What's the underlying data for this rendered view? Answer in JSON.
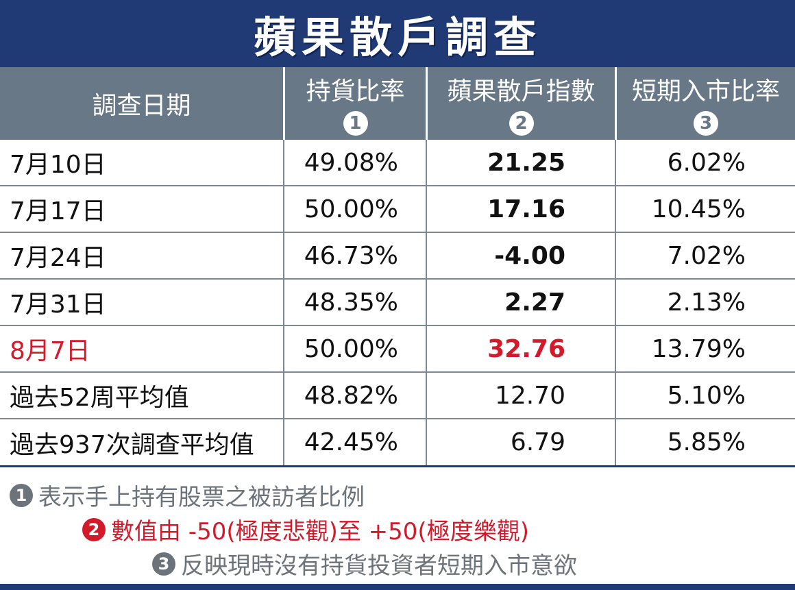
{
  "title": "蘋果散戶調查",
  "headers": [
    {
      "label": "調查日期",
      "badge": ""
    },
    {
      "label": "持貨比率",
      "badge": "1"
    },
    {
      "label": "蘋果散戶指數",
      "badge": "2"
    },
    {
      "label": "短期入市比率",
      "badge": "3"
    }
  ],
  "rows": [
    {
      "date": "7月10日",
      "holding": "49.08%",
      "index": "21.25",
      "short": "6.02%"
    },
    {
      "date": "7月17日",
      "holding": "50.00%",
      "index": "17.16",
      "short": "10.45%"
    },
    {
      "date": "7月24日",
      "holding": "46.73%",
      "index": "-4.00",
      "short": "7.02%"
    },
    {
      "date": "7月31日",
      "holding": "48.35%",
      "index": "2.27",
      "short": "2.13%"
    },
    {
      "date": "8月7日",
      "holding": "50.00%",
      "index": "32.76",
      "short": "13.79%"
    },
    {
      "date": "過去52周平均值",
      "holding": "48.82%",
      "index": "12.70",
      "short": "5.10%"
    },
    {
      "date": "過去937次調查平均值",
      "holding": "42.45%",
      "index": "6.79",
      "short": "5.85%"
    }
  ],
  "notes": [
    {
      "badge": "1",
      "text": "表示手上持有股票之被訪者比例"
    },
    {
      "badge": "2",
      "text": "數值由 -50(極度悲觀)至 +50(極度樂觀)"
    },
    {
      "badge": "3",
      "text": "反映現時沒有持貨投資者短期入市意欲"
    }
  ],
  "colors": {
    "title_bg": "#1f3a74",
    "header_bg": "#687887",
    "highlight_red": "#d21a2b",
    "note_gray": "#6c737a"
  }
}
